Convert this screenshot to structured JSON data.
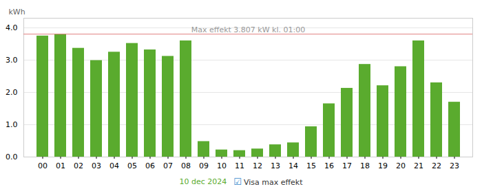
{
  "chart_data": {
    "type": "bar",
    "y_label": "kWh",
    "categories": [
      "00",
      "01",
      "02",
      "03",
      "04",
      "05",
      "06",
      "07",
      "08",
      "09",
      "10",
      "11",
      "12",
      "13",
      "14",
      "15",
      "16",
      "17",
      "18",
      "19",
      "20",
      "21",
      "22",
      "23"
    ],
    "series": [
      {
        "name": "10 dec 2024",
        "color": "#5aab2e",
        "values": [
          3.75,
          3.807,
          3.37,
          2.99,
          3.25,
          3.52,
          3.32,
          3.12,
          3.6,
          0.48,
          0.22,
          0.2,
          0.25,
          0.38,
          0.44,
          0.94,
          1.65,
          2.13,
          2.87,
          2.21,
          2.8,
          3.6,
          2.3,
          1.7
        ]
      }
    ],
    "reference_line": {
      "value": 3.807,
      "label": "Max effekt 3.807 kW kl. 01:00",
      "color": "#e08080",
      "label_color": "#999999"
    },
    "checkbox": {
      "symbol": "☑",
      "label": "Visa max effekt",
      "color": "#3388cc"
    },
    "ylim": [
      0,
      4.3
    ],
    "yticks": [
      0,
      1,
      2,
      3,
      4
    ],
    "grid": true,
    "legend": "bottom"
  }
}
